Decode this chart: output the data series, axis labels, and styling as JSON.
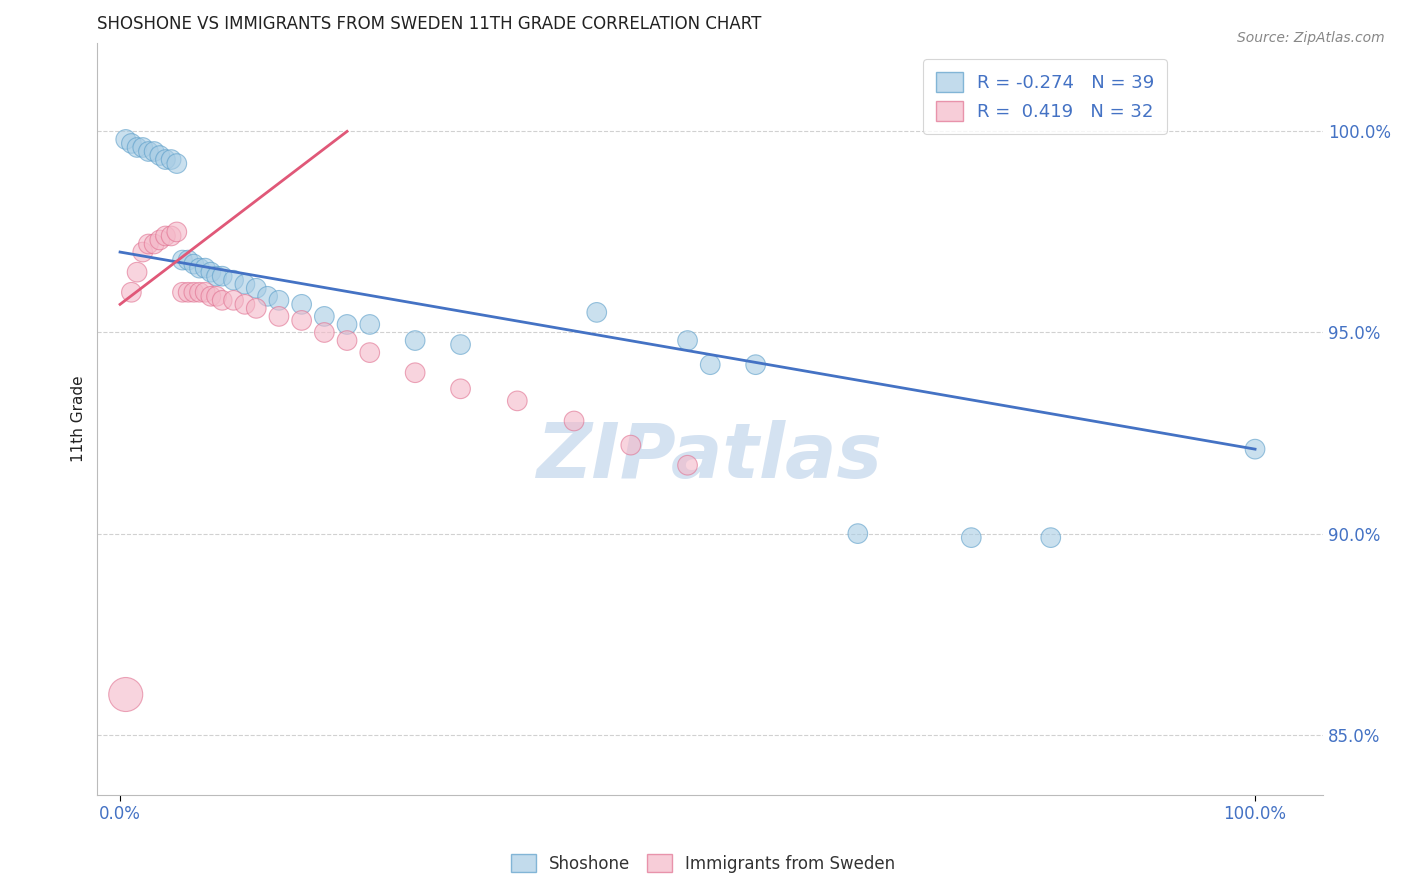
{
  "title": "SHOSHONE VS IMMIGRANTS FROM SWEDEN 11TH GRADE CORRELATION CHART",
  "source_text": "Source: ZipAtlas.com",
  "ylabel": "11th Grade",
  "blue_color": "#a8cce4",
  "pink_color": "#f4b8c8",
  "blue_edge_color": "#5b9ec9",
  "pink_edge_color": "#e07090",
  "blue_line_color": "#4472c4",
  "pink_line_color": "#e05878",
  "legend_text_color": "#4472c4",
  "watermark_color": "#d0dff0",
  "title_color": "#222222",
  "tick_color": "#4472c4",
  "source_color": "#888888",
  "grid_color": "#cccccc",
  "ylabel_color": "#222222",
  "shoshone_x": [
    0.005,
    0.01,
    0.015,
    0.02,
    0.025,
    0.03,
    0.035,
    0.04,
    0.045,
    0.05,
    0.055,
    0.06,
    0.065,
    0.07,
    0.075,
    0.08,
    0.085,
    0.09,
    0.1,
    0.11,
    0.12,
    0.13,
    0.14,
    0.16,
    0.18,
    0.2,
    0.22,
    0.26,
    0.3,
    0.42,
    0.5,
    0.52,
    0.56,
    0.65,
    0.75,
    0.82,
    1.0
  ],
  "shoshone_y": [
    0.998,
    0.997,
    0.996,
    0.996,
    0.995,
    0.995,
    0.994,
    0.993,
    0.993,
    0.992,
    0.968,
    0.968,
    0.967,
    0.966,
    0.966,
    0.965,
    0.964,
    0.964,
    0.963,
    0.962,
    0.961,
    0.959,
    0.958,
    0.957,
    0.954,
    0.952,
    0.952,
    0.948,
    0.947,
    0.955,
    0.948,
    0.942,
    0.942,
    0.9,
    0.899,
    0.899,
    0.921
  ],
  "shoshone_sizes": [
    200,
    200,
    200,
    200,
    200,
    200,
    200,
    200,
    200,
    200,
    200,
    200,
    200,
    200,
    200,
    200,
    200,
    200,
    200,
    200,
    200,
    200,
    200,
    200,
    200,
    200,
    200,
    200,
    200,
    200,
    200,
    200,
    200,
    200,
    200,
    200,
    200
  ],
  "sweden_x": [
    0.005,
    0.01,
    0.015,
    0.02,
    0.025,
    0.03,
    0.035,
    0.04,
    0.045,
    0.05,
    0.055,
    0.06,
    0.065,
    0.07,
    0.075,
    0.08,
    0.085,
    0.09,
    0.1,
    0.11,
    0.12,
    0.14,
    0.16,
    0.18,
    0.2,
    0.22,
    0.26,
    0.3,
    0.35,
    0.4,
    0.45,
    0.5
  ],
  "sweden_y": [
    0.86,
    0.96,
    0.965,
    0.97,
    0.972,
    0.972,
    0.973,
    0.974,
    0.974,
    0.975,
    0.96,
    0.96,
    0.96,
    0.96,
    0.96,
    0.959,
    0.959,
    0.958,
    0.958,
    0.957,
    0.956,
    0.954,
    0.953,
    0.95,
    0.948,
    0.945,
    0.94,
    0.936,
    0.933,
    0.928,
    0.922,
    0.917
  ],
  "sweden_sizes": [
    600,
    200,
    200,
    200,
    200,
    200,
    200,
    200,
    200,
    200,
    200,
    200,
    200,
    200,
    200,
    200,
    200,
    200,
    200,
    200,
    200,
    200,
    200,
    200,
    200,
    200,
    200,
    200,
    200,
    200,
    200,
    200
  ],
  "blue_line_x": [
    0.0,
    1.0
  ],
  "blue_line_y": [
    0.97,
    0.921
  ],
  "pink_line_x": [
    0.0,
    0.2
  ],
  "pink_line_y": [
    0.957,
    1.0
  ],
  "xlim": [
    -0.02,
    1.06
  ],
  "ylim": [
    0.835,
    1.022
  ],
  "yticks": [
    0.85,
    0.9,
    0.95,
    1.0
  ],
  "ytick_labels": [
    "85.0%",
    "90.0%",
    "95.0%",
    "100.0%"
  ],
  "xticks": [
    0.0,
    1.0
  ],
  "xtick_labels": [
    "0.0%",
    "100.0%"
  ],
  "watermark": "ZIPatlas"
}
